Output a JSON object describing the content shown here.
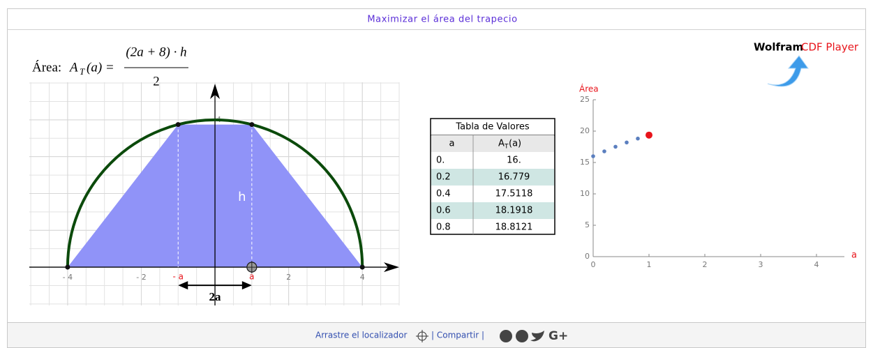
{
  "header": {
    "title": "Maximizar el área del trapecio"
  },
  "formula": {
    "label": "Área:",
    "lhs": "A",
    "sub": "T",
    "arg": "(a) =",
    "numerator": "(2a + 8) · h",
    "denominator": "2"
  },
  "geometry_plot": {
    "type": "area",
    "xlim": [
      -5.04,
      5.0
    ],
    "ylim": [
      -1.04,
      5.02
    ],
    "xticks": [
      {
        "value": -4,
        "label": "- 4"
      },
      {
        "value": -2,
        "label": "- 2"
      },
      2,
      4
    ],
    "yticks": [
      1,
      2,
      3,
      4
    ],
    "grid": true,
    "radius": 4,
    "a": 1,
    "h": 3.873,
    "circle_color": "#0b4a0b",
    "fill_color": "#9093f8",
    "labels": {
      "minus_a": "- a",
      "a": "a",
      "h": "h",
      "width": "2a"
    }
  },
  "table": {
    "title": "Tabla de Valores",
    "header": {
      "a": "a",
      "area": "A",
      "area_sub": "T",
      "area_arg": "(a)"
    },
    "rows": [
      [
        "0.",
        "16."
      ],
      [
        "0.2",
        "16.779"
      ],
      [
        "0.4",
        "17.5118"
      ],
      [
        "0.6",
        "18.1918"
      ],
      [
        "0.8",
        "18.8121"
      ]
    ]
  },
  "chart_data": {
    "type": "scatter",
    "xlabel": "a",
    "ylabel": "Área",
    "x": [
      0,
      0.2,
      0.4,
      0.6,
      0.8
    ],
    "values": [
      16,
      16.779,
      17.5118,
      18.1918,
      18.8121
    ],
    "color": "#5b7fbf",
    "current": {
      "x": 1,
      "value": 19.365,
      "color": "#e8141b"
    },
    "xlim": [
      0,
      4.5
    ],
    "ylim": [
      0,
      25
    ],
    "xticks": [
      0,
      1,
      2,
      3,
      4
    ],
    "yticks": [
      0,
      5,
      10,
      15,
      20,
      25
    ]
  },
  "logo": {
    "brand": "Wolfram",
    "product": "CDF Player"
  },
  "footer": {
    "drag": "Arrastre el localizador",
    "share": "| Compartir |",
    "gplus": "G+"
  }
}
